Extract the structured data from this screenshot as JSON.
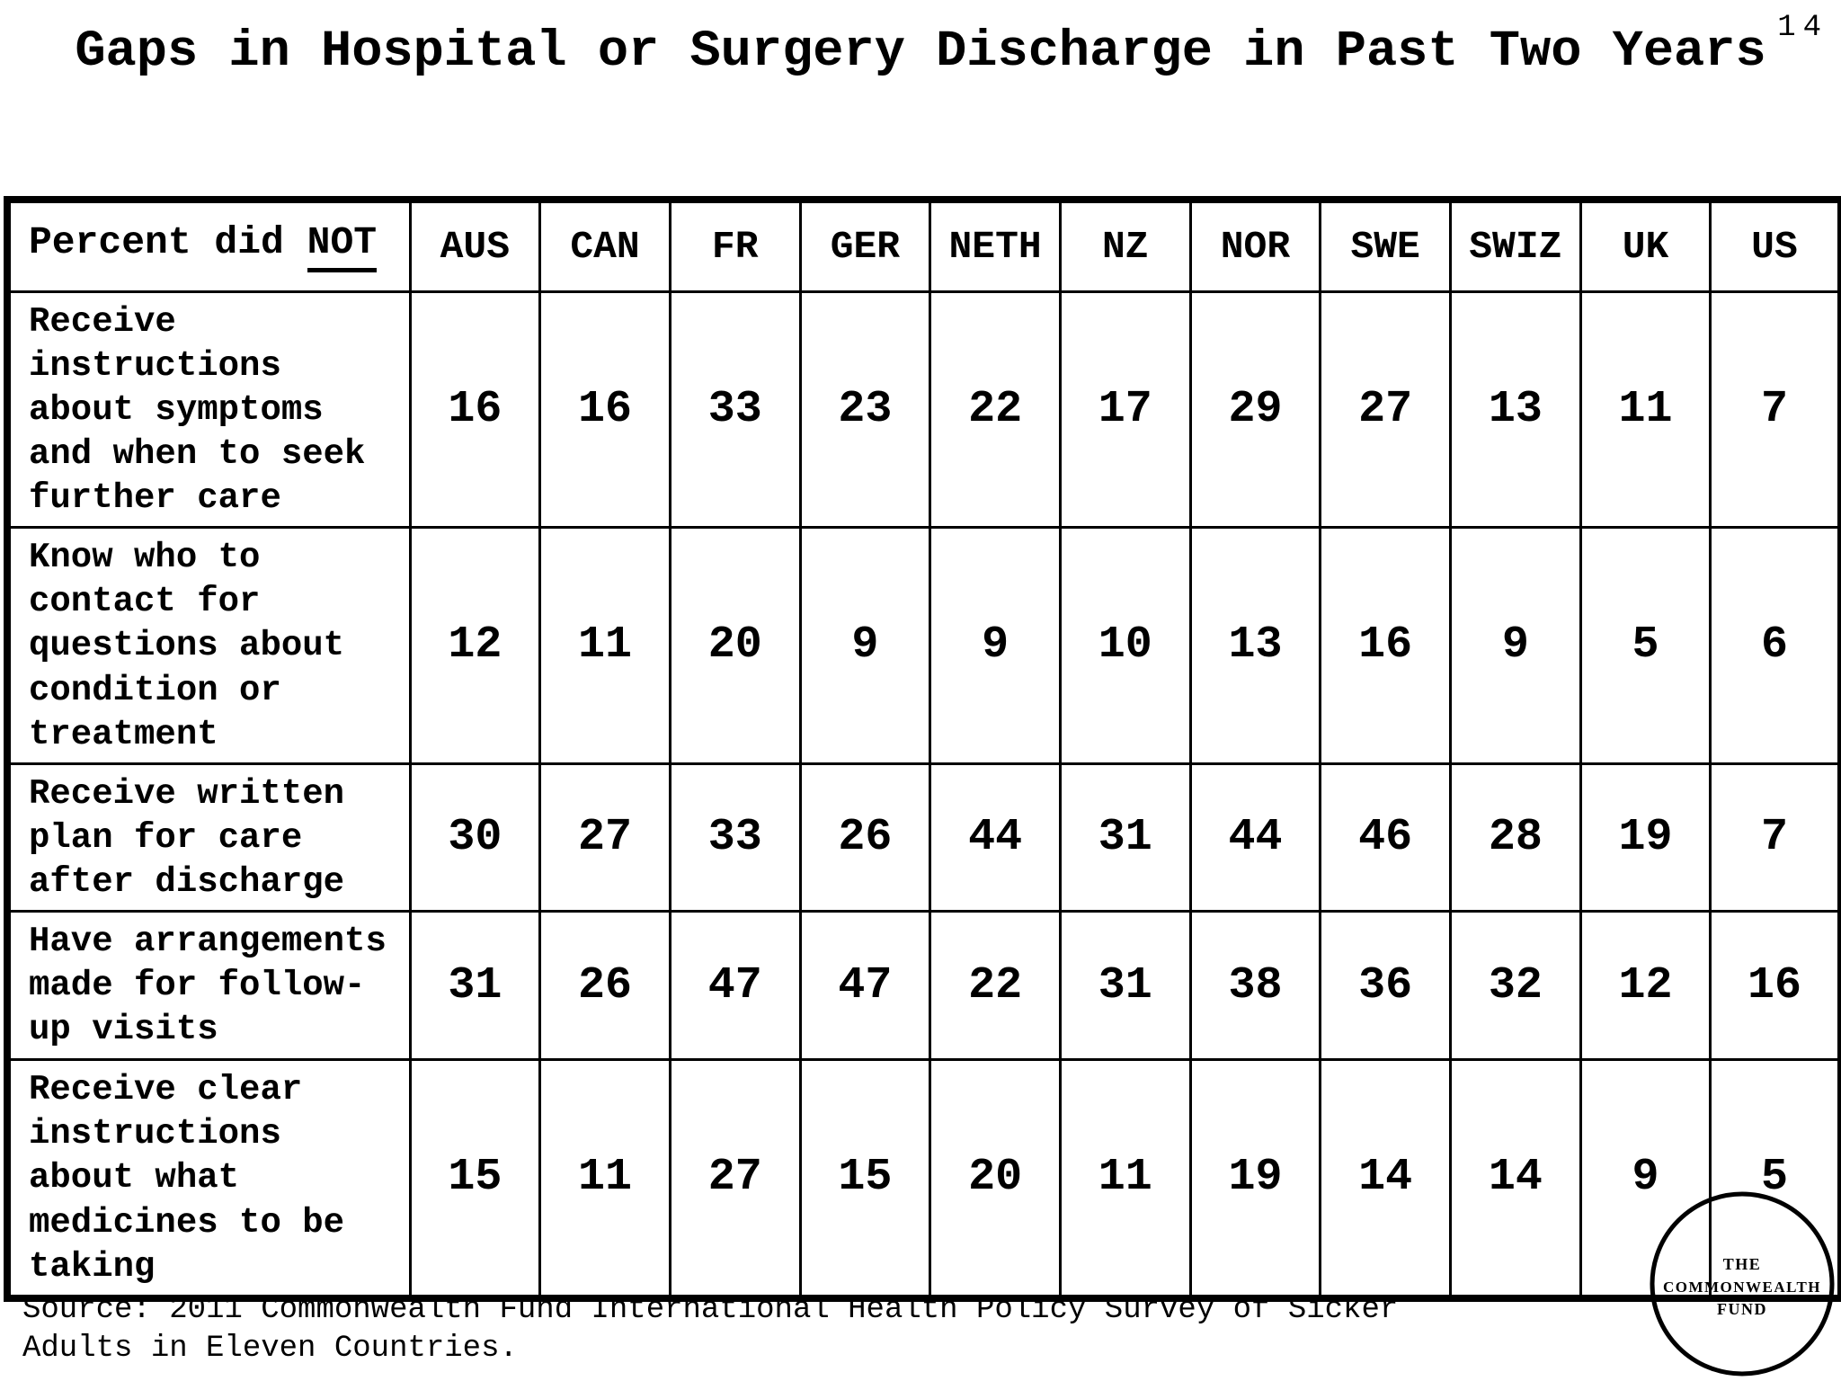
{
  "page": {
    "number": "14",
    "title": "Gaps in Hospital or Surgery Discharge in Past Two Years"
  },
  "table": {
    "header": {
      "label_prefix": "Percent did ",
      "label_emphasis": "NOT",
      "columns": [
        "AUS",
        "CAN",
        "FR",
        "GER",
        "NETH",
        "NZ",
        "NOR",
        "SWE",
        "SWIZ",
        "UK",
        "US"
      ]
    },
    "rows": [
      {
        "label": "Receive\ninstructions\nabout symptoms\nand when to seek\nfurther care",
        "values": [
          16,
          16,
          33,
          23,
          22,
          17,
          29,
          27,
          13,
          11,
          7
        ]
      },
      {
        "label": "Know who to\ncontact for\nquestions about\ncondition or\ntreatment",
        "values": [
          12,
          11,
          20,
          9,
          9,
          10,
          13,
          16,
          9,
          5,
          6
        ]
      },
      {
        "label": "Receive written\nplan for care\nafter discharge",
        "values": [
          30,
          27,
          33,
          26,
          44,
          31,
          44,
          46,
          28,
          19,
          7
        ]
      },
      {
        "label": "Have arrangements\nmade for follow-\nup visits",
        "values": [
          31,
          26,
          47,
          47,
          22,
          31,
          38,
          36,
          32,
          12,
          16
        ]
      },
      {
        "label": "Receive clear\ninstructions\nabout what\nmedicines to be\ntaking",
        "values": [
          15,
          11,
          27,
          15,
          20,
          11,
          19,
          14,
          14,
          9,
          5
        ]
      }
    ]
  },
  "source": "Source: 2011 Commonwealth Fund International Health Policy Survey of Sicker\nAdults in Eleven Countries.",
  "logo": {
    "line1": "THE",
    "line2": "COMMONWEALTH",
    "line3": "FUND"
  },
  "colors": {
    "foreground": "#000000",
    "background": "#ffffff"
  },
  "chart_data": {
    "type": "table",
    "title": "Gaps in Hospital or Surgery Discharge in Past Two Years",
    "unit": "percent did NOT",
    "categories": [
      "AUS",
      "CAN",
      "FR",
      "GER",
      "NETH",
      "NZ",
      "NOR",
      "SWE",
      "SWIZ",
      "UK",
      "US"
    ],
    "series": [
      {
        "name": "Receive instructions about symptoms and when to seek further care",
        "values": [
          16,
          16,
          33,
          23,
          22,
          17,
          29,
          27,
          13,
          11,
          7
        ]
      },
      {
        "name": "Know who to contact for questions about condition or treatment",
        "values": [
          12,
          11,
          20,
          9,
          9,
          10,
          13,
          16,
          9,
          5,
          6
        ]
      },
      {
        "name": "Receive written plan for care after discharge",
        "values": [
          30,
          27,
          33,
          26,
          44,
          31,
          44,
          46,
          28,
          19,
          7
        ]
      },
      {
        "name": "Have arrangements made for follow-up visits",
        "values": [
          31,
          26,
          47,
          47,
          22,
          31,
          38,
          36,
          32,
          12,
          16
        ]
      },
      {
        "name": "Receive clear instructions about what medicines to be taking",
        "values": [
          15,
          11,
          27,
          15,
          20,
          11,
          19,
          14,
          14,
          9,
          5
        ]
      }
    ],
    "source": "Source: 2011 Commonwealth Fund International Health Policy Survey of Sicker Adults in Eleven Countries.",
    "legend_position": "none",
    "grid": true
  }
}
